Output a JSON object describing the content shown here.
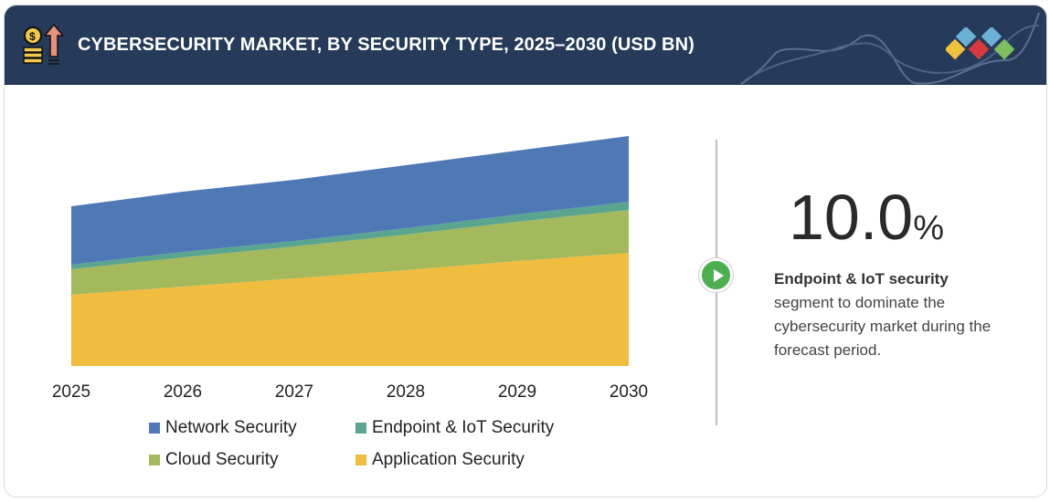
{
  "header": {
    "title": "CYBERSECURITY MARKET, BY SECURITY TYPE, 2025–2030 (USD BN)",
    "icon": "coins-growth-icon",
    "logo": "diamond-logo"
  },
  "chart_data": {
    "type": "area",
    "stacked": true,
    "categories": [
      "2025",
      "2026",
      "2027",
      "2028",
      "2029",
      "2030"
    ],
    "series": [
      {
        "name": "Application Security",
        "color": "#f0bd3e",
        "values": [
          78,
          87,
          96,
          105,
          115,
          124
        ]
      },
      {
        "name": "Cloud Security",
        "color": "#a3b95c",
        "values": [
          28,
          32,
          35,
          39,
          43,
          47
        ]
      },
      {
        "name": "Endpoint & IoT Security",
        "color": "#5aa58f",
        "values": [
          5,
          6,
          6,
          7,
          8,
          9
        ]
      },
      {
        "name": "Network Security",
        "color": "#4f79b5",
        "values": [
          64,
          66,
          67,
          69,
          70,
          72
        ]
      }
    ],
    "legend": [
      {
        "label": "Network Security",
        "color": "#4f79b5"
      },
      {
        "label": "Endpoint & IoT Security",
        "color": "#5aa58f"
      },
      {
        "label": "Cloud Security",
        "color": "#a3b95c"
      },
      {
        "label": "Application Security",
        "color": "#f0bd3e"
      }
    ],
    "legend_position": "bottom",
    "grid": false,
    "y_axis_shown": false
  },
  "highlight": {
    "value": "10.0",
    "unit": "%",
    "bold": "Endpoint & IoT security",
    "text": "segment to dominate the cybersecurity market during the forecast period."
  }
}
